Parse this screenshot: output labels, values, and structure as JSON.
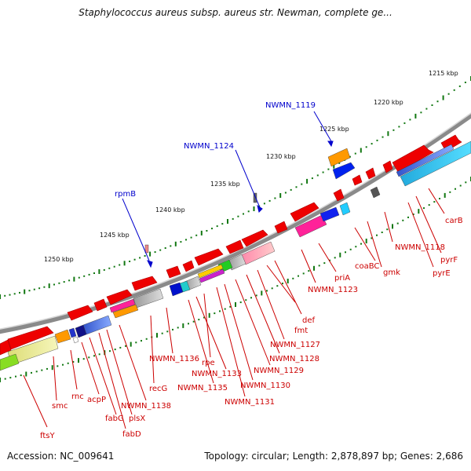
{
  "title": "Staphylococcus aureus subsp. aureus str. Newman, complete ge...",
  "footer": {
    "accession": "Accession: NC_009641",
    "summary": "Topology: circular; Length: 2,878,897 bp; Genes: 2,686"
  },
  "colors": {
    "forward_gene": "#ee0000",
    "backbone": "#8a8a8a",
    "label_red": "#cc0000",
    "label_blue": "#0000cc",
    "tick_green": "#117711"
  },
  "scale_labels": [
    "1215 kbp",
    "1220 kbp",
    "1225 kbp",
    "1230 kbp",
    "1235 kbp",
    "1240 kbp",
    "1245 kbp",
    "1250 kbp"
  ],
  "blue_labels": [
    "NWMN_1119",
    "NWMN_1124",
    "rpmB"
  ],
  "red_labels": [
    "carB",
    "pyrF",
    "pyrE",
    "NWMN_1118",
    "gmk",
    "coaBC",
    "priA",
    "NWMN_1123",
    "def",
    "fmt",
    "NWMN_1127",
    "NWMN_1128",
    "NWMN_1129",
    "NWMN_1130",
    "NWMN_1131",
    "rpe",
    "NWMN_1133",
    "NWMN_1135",
    "NWMN_1136",
    "recG",
    "NWMN_1138",
    "plsX",
    "fabD",
    "fabG",
    "acpP",
    "rnc",
    "smc",
    "ftsY"
  ]
}
